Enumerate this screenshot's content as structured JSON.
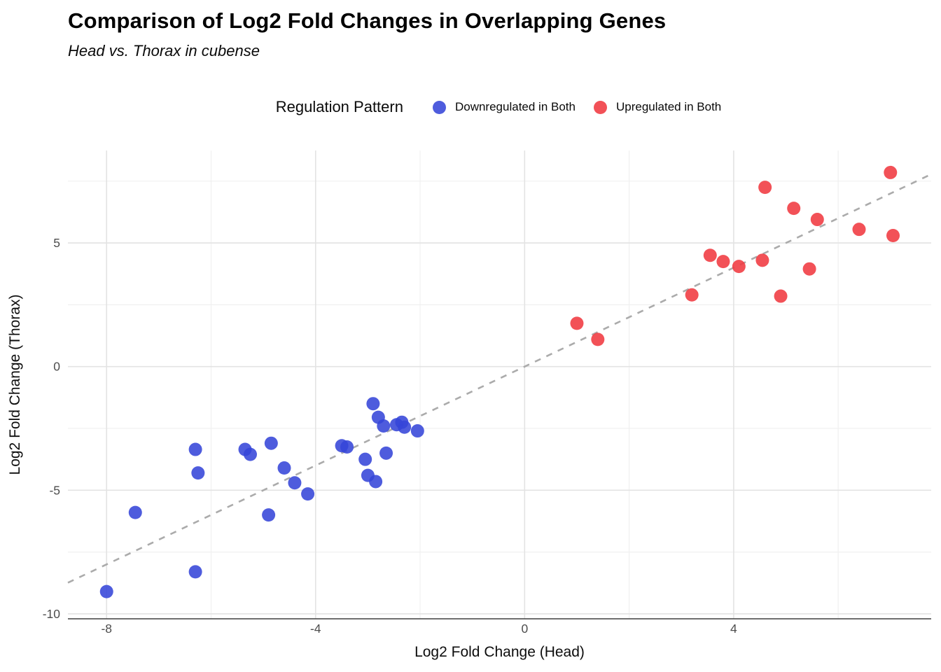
{
  "chart_data": {
    "type": "scatter",
    "title": "Comparison of Log2 Fold Changes in Overlapping Genes",
    "subtitle": "Head vs. Thorax in cubense",
    "legend_title": "Regulation Pattern",
    "legend_position": "top",
    "xlabel": "Log2 Fold Change (Head)",
    "ylabel": "Log2 Fold Change (Thorax)",
    "xlim": [
      -8.74,
      7.78
    ],
    "ylim": [
      -10.2,
      8.74
    ],
    "xticks": [
      -8,
      -4,
      0,
      4
    ],
    "yticks": [
      -10,
      -5,
      0,
      5
    ],
    "xticks_minor": [
      -6,
      -2,
      2,
      6
    ],
    "yticks_minor": [
      -7.5,
      -2.5,
      2.5,
      7.5
    ],
    "grid": true,
    "background": "#FFFFFF",
    "grid_major_color": "#E3E3E3",
    "grid_minor_color": "#F0F0F0",
    "point_radius_px": 9.5,
    "point_opacity": 0.88,
    "reference_line": {
      "type": "identity",
      "slope": 1,
      "intercept": 0,
      "style": "dashed",
      "color": "#ABABAB"
    },
    "series": [
      {
        "name": "Downregulated in Both",
        "color": "#3545D8",
        "points": [
          [
            -8.0,
            -9.1
          ],
          [
            -7.45,
            -5.9
          ],
          [
            -6.3,
            -3.35
          ],
          [
            -6.25,
            -4.3
          ],
          [
            -6.3,
            -8.3
          ],
          [
            -5.35,
            -3.35
          ],
          [
            -5.25,
            -3.55
          ],
          [
            -4.85,
            -3.1
          ],
          [
            -4.9,
            -6.0
          ],
          [
            -4.6,
            -4.1
          ],
          [
            -4.4,
            -4.7
          ],
          [
            -4.15,
            -5.15
          ],
          [
            -3.5,
            -3.2
          ],
          [
            -3.4,
            -3.25
          ],
          [
            -3.05,
            -3.75
          ],
          [
            -3.0,
            -4.4
          ],
          [
            -2.85,
            -4.65
          ],
          [
            -2.9,
            -1.5
          ],
          [
            -2.8,
            -2.05
          ],
          [
            -2.7,
            -2.4
          ],
          [
            -2.65,
            -3.5
          ],
          [
            -2.45,
            -2.35
          ],
          [
            -2.35,
            -2.25
          ],
          [
            -2.3,
            -2.45
          ],
          [
            -2.05,
            -2.6
          ]
        ]
      },
      {
        "name": "Upregulated in Both",
        "color": "#F03940",
        "points": [
          [
            1.0,
            1.75
          ],
          [
            1.4,
            1.1
          ],
          [
            3.2,
            2.9
          ],
          [
            3.55,
            4.5
          ],
          [
            3.8,
            4.25
          ],
          [
            4.1,
            4.05
          ],
          [
            4.55,
            4.3
          ],
          [
            4.6,
            7.25
          ],
          [
            4.9,
            2.85
          ],
          [
            5.15,
            6.4
          ],
          [
            5.45,
            3.95
          ],
          [
            5.6,
            5.95
          ],
          [
            6.4,
            5.55
          ],
          [
            7.0,
            7.85
          ],
          [
            7.05,
            5.3
          ]
        ]
      }
    ]
  },
  "legend": {
    "items": [
      {
        "label": "Downregulated in Both",
        "color": "#3545D8"
      },
      {
        "label": "Upregulated in Both",
        "color": "#F03940"
      }
    ]
  }
}
